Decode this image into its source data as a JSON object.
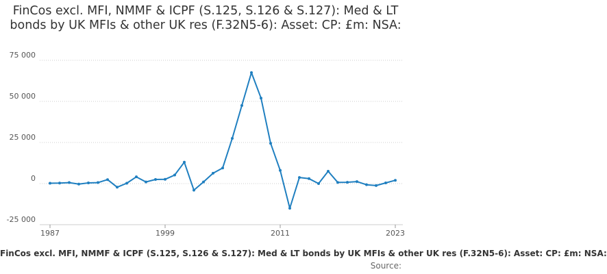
{
  "chart_data": {
    "type": "line",
    "title": "FinCos excl. MFI, NMMF & ICPF (S.125, S.126 & S.127): Med & LT bonds by UK MFIs & other UK res (F.32N5-6): Asset: CP: £m: NSA:",
    "xlabel": "",
    "ylabel": "",
    "xlim": [
      1987,
      2023
    ],
    "ylim": [
      -25000,
      75000
    ],
    "y_ticks": [
      -25000,
      0,
      25000,
      50000,
      75000
    ],
    "y_tick_labels": [
      "-25 000",
      "0",
      "25 000",
      "50 000",
      "75 000"
    ],
    "x_ticks": [
      1987,
      1999,
      2011,
      2023
    ],
    "x_tick_labels": [
      "1987",
      "1999",
      "2011",
      "2023"
    ],
    "grid": true,
    "line_color": "#1f7fc0",
    "series": [
      {
        "name": "FinCos excl. MFI, NMMF & ICPF (S.125, S.126 & S.127): Med & LT bonds by UK MFIs & other UK res (F.32N5-6)",
        "x": [
          1987,
          1988,
          1989,
          1990,
          1991,
          1992,
          1993,
          1994,
          1995,
          1996,
          1997,
          1998,
          1999,
          2000,
          2001,
          2002,
          2003,
          2004,
          2005,
          2006,
          2007,
          2008,
          2009,
          2010,
          2011,
          2012,
          2013,
          2014,
          2015,
          2016,
          2017,
          2018,
          2019,
          2020,
          2021,
          2022,
          2023
        ],
        "values": [
          200,
          300,
          600,
          -300,
          400,
          600,
          2400,
          -2200,
          200,
          4100,
          1000,
          2500,
          2600,
          5200,
          13000,
          -4000,
          1000,
          6300,
          9500,
          27500,
          47500,
          67500,
          52000,
          24500,
          8000,
          -15000,
          3700,
          3000,
          0,
          7500,
          700,
          800,
          1200,
          -700,
          -1200,
          400,
          2000
        ]
      }
    ]
  },
  "footer": {
    "series_label": "FinCos excl. MFI, NMMF & ICPF (S.125, S.126 & S.127): Med & LT bonds by UK MFIs & other UK res (F.32N5-6): Asset: CP: £m: NSA:",
    "source_label": "Source:"
  }
}
